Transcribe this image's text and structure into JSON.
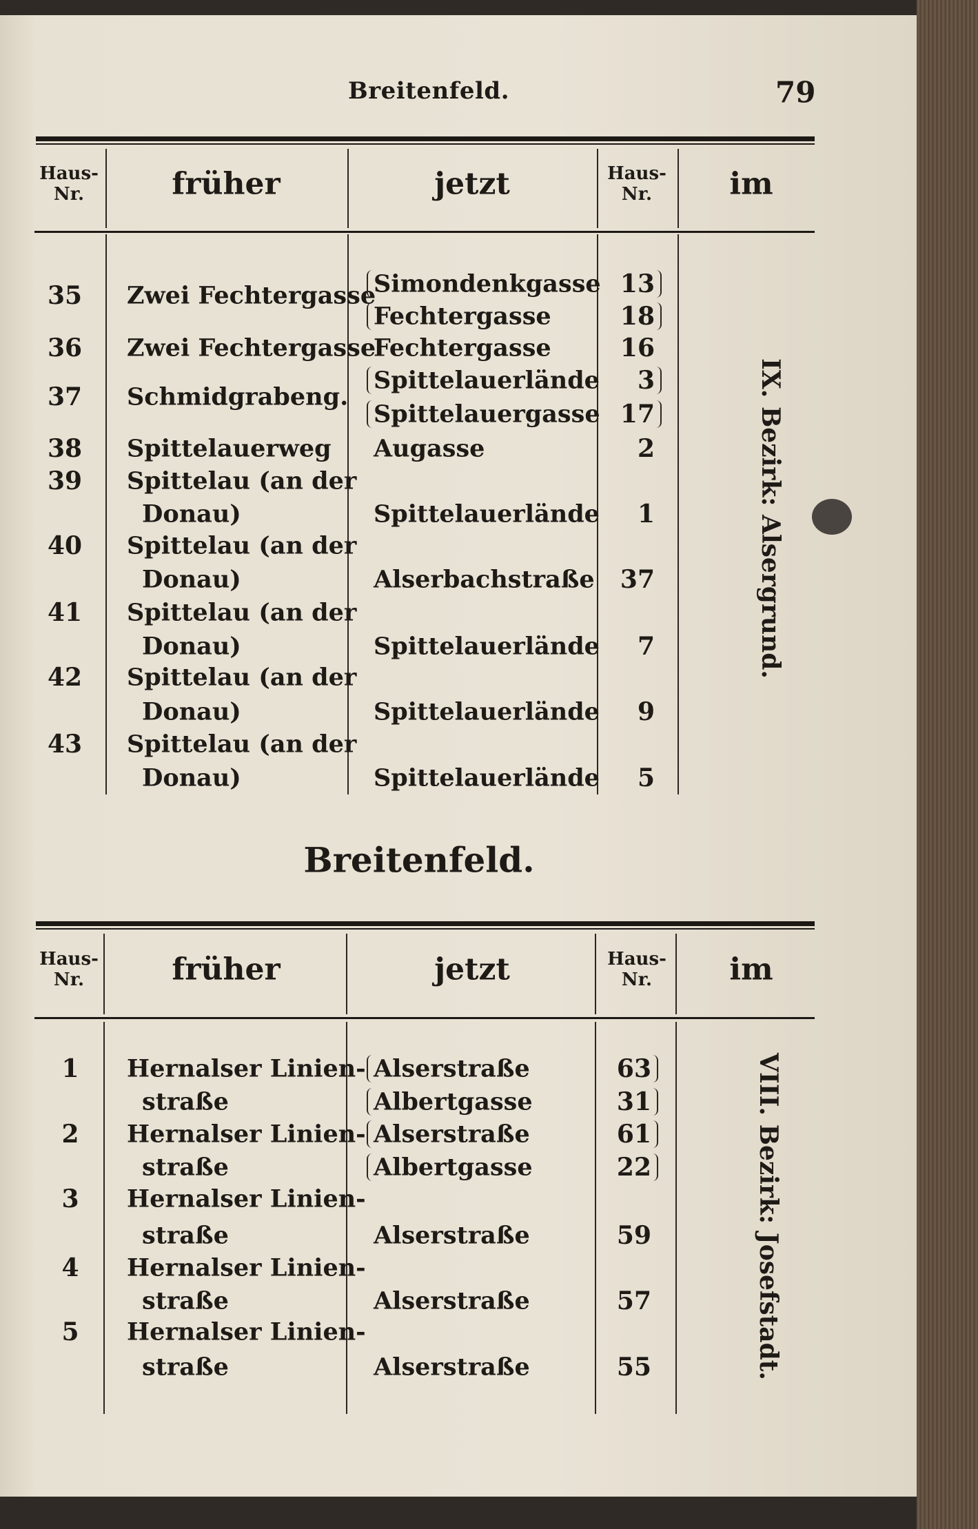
{
  "running_head": "Breitenfeld.",
  "page_number": "79",
  "headers": {
    "haus_nr": "Haus-\nNr.",
    "frueher": "früher",
    "jetzt": "jetzt",
    "haus_nr2": "Haus-\nNr.",
    "im": "im"
  },
  "section_title": "Breitenfeld.",
  "table1": {
    "district": "IX. Bezirk: Alsergrund.",
    "rows": [
      {
        "nr": "35",
        "frueher": [
          "Zwei Fechtergasse"
        ],
        "jetzt": [
          "Simondenkgasse",
          "Fechtergasse"
        ],
        "nr2": [
          "13",
          "18"
        ]
      },
      {
        "nr": "36",
        "frueher": [
          "Zwei Fechtergasse"
        ],
        "jetzt": [
          "Fechtergasse"
        ],
        "nr2": [
          "16"
        ]
      },
      {
        "nr": "37",
        "frueher": [
          "Schmidgrabeng."
        ],
        "jetzt": [
          "Spittelauerlände",
          "Spittelauergasse"
        ],
        "nr2": [
          "3",
          "17"
        ]
      },
      {
        "nr": "38",
        "frueher": [
          "Spittelauerweg"
        ],
        "jetzt": [
          "Augasse"
        ],
        "nr2": [
          "2"
        ]
      },
      {
        "nr": "39",
        "frueher": [
          "Spittelau (an der",
          "Donau)"
        ],
        "jetzt": [
          "Spittelauerlände"
        ],
        "nr2": [
          "1"
        ]
      },
      {
        "nr": "40",
        "frueher": [
          "Spittelau (an der",
          "Donau)"
        ],
        "jetzt": [
          "Alserbachstraße"
        ],
        "nr2": [
          "37"
        ]
      },
      {
        "nr": "41",
        "frueher": [
          "Spittelau (an der",
          "Donau)"
        ],
        "jetzt": [
          "Spittelauerlände"
        ],
        "nr2": [
          "7"
        ]
      },
      {
        "nr": "42",
        "frueher": [
          "Spittelau (an der",
          "Donau)"
        ],
        "jetzt": [
          "Spittelauerlände"
        ],
        "nr2": [
          "9"
        ]
      },
      {
        "nr": "43",
        "frueher": [
          "Spittelau (an der",
          "Donau)"
        ],
        "jetzt": [
          "Spittelauerlände"
        ],
        "nr2": [
          "5"
        ]
      }
    ]
  },
  "table2": {
    "district": "VIII. Bezirk: Josefstadt.",
    "rows": [
      {
        "nr": "1",
        "frueher": [
          "Hernalser Linien-",
          "straße"
        ],
        "jetzt": [
          "Alserstraße",
          "Albertgasse"
        ],
        "nr2": [
          "63",
          "31"
        ]
      },
      {
        "nr": "2",
        "frueher": [
          "Hernalser Linien-",
          "straße"
        ],
        "jetzt": [
          "Alserstraße",
          "Albertgasse"
        ],
        "nr2": [
          "61",
          "22"
        ]
      },
      {
        "nr": "3",
        "frueher": [
          "Hernalser Linien-",
          "straße"
        ],
        "jetzt": [
          "Alserstraße"
        ],
        "nr2": [
          "59"
        ]
      },
      {
        "nr": "4",
        "frueher": [
          "Hernalser Linien-",
          "straße"
        ],
        "jetzt": [
          "Alserstraße"
        ],
        "nr2": [
          "57"
        ]
      },
      {
        "nr": "5",
        "frueher": [
          "Hernalser Linien-",
          "straße"
        ],
        "jetzt": [
          "Alserstraße"
        ],
        "nr2": [
          "55"
        ]
      }
    ]
  }
}
